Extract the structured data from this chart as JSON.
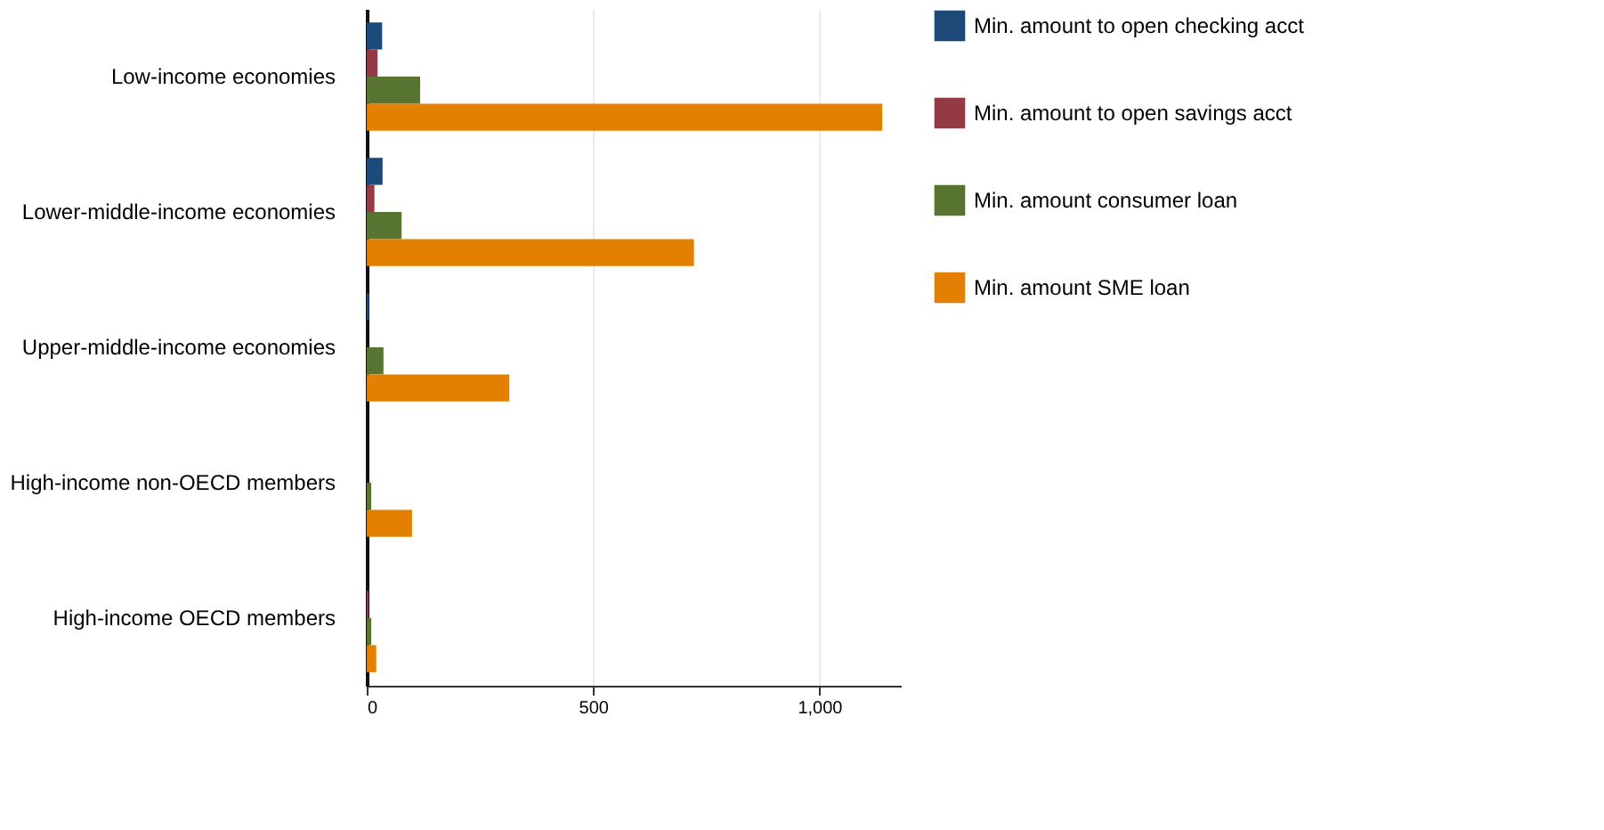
{
  "chart_data": {
    "type": "bar",
    "orientation": "horizontal",
    "categories": [
      "Low-income economies",
      "Lower-middle-income economies",
      "Upper-middle-income economies",
      "High-income non-OECD members",
      "High-income OECD members"
    ],
    "series": [
      {
        "name": "Min. amount to open checking acct",
        "color": "#1d4a78",
        "values": [
          34,
          35,
          5,
          0,
          0
        ]
      },
      {
        "name": "Min. amount to open savings acct",
        "color": "#933a45",
        "values": [
          24,
          17,
          0,
          0,
          4
        ]
      },
      {
        "name": "Min. amount consumer loan",
        "color": "#577530",
        "values": [
          118,
          77,
          37,
          10,
          10
        ]
      },
      {
        "name": "Min. amount SME loan",
        "color": "#e38001",
        "values": [
          1139,
          723,
          315,
          100,
          21
        ]
      }
    ],
    "xlim": [
      0,
      1180
    ],
    "xticks": [
      0,
      500,
      {
        "value": 1000,
        "label": "1,000"
      }
    ],
    "grid": "x",
    "legend": "right"
  }
}
